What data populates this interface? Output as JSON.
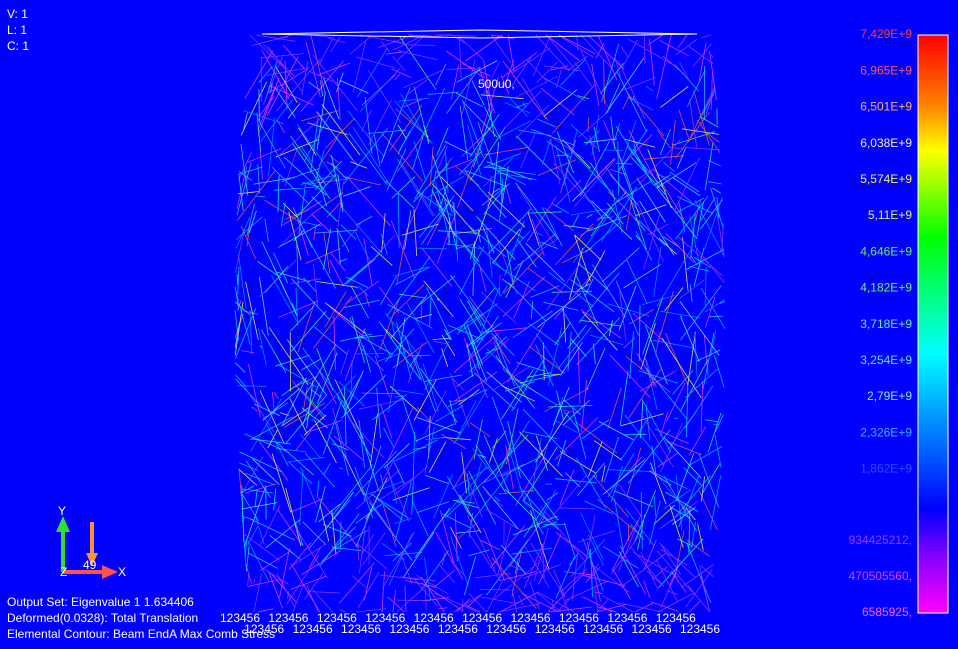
{
  "viewport_info": {
    "view": "V: 1",
    "load": "L: 1",
    "constraint": "C: 1"
  },
  "annotation": "500u0,",
  "legend": {
    "upper": [
      {
        "label": "7,429E+9",
        "color": "#ff3c3c"
      },
      {
        "label": "6,965E+9",
        "color": "#ff5a5a"
      },
      {
        "label": "6,501E+9",
        "color": "#ffb06a"
      },
      {
        "label": "6,038E+9",
        "color": "#f0f0c0"
      },
      {
        "label": "5,574E+9",
        "color": "#f0f060"
      },
      {
        "label": "5,11E+9",
        "color": "#d8f070"
      },
      {
        "label": "4,646E+9",
        "color": "#60f060"
      },
      {
        "label": "4,182E+9",
        "color": "#70f070"
      },
      {
        "label": "3,718E+9",
        "color": "#60f0b0"
      },
      {
        "label": "3,254E+9",
        "color": "#60e0f0"
      },
      {
        "label": "2,79E+9",
        "color": "#80e8ff"
      },
      {
        "label": "2,326E+9",
        "color": "#40b0ff"
      },
      {
        "label": "1,862E+9",
        "color": "#3050ff"
      }
    ],
    "lower": [
      {
        "label": "934425212,",
        "color": "#9a3cff"
      },
      {
        "label": "470505560,",
        "color": "#e040ff"
      },
      {
        "label": "6585925,",
        "color": "#ff60ff"
      }
    ]
  },
  "status": [
    "Output Set: Eigenvalue 1 1.634406",
    "Deformed(0.0328): Total Translation",
    "Elemental Contour: Beam EndA Max Comb Stress"
  ],
  "triad": {
    "x": "X",
    "y": "Y",
    "z": "Z",
    "angle": "49"
  },
  "constraint_labels": [
    "123456",
    "123456",
    "123456",
    "123456",
    "123456",
    "123456",
    "123456",
    "123456",
    "123456",
    "123456",
    "123456",
    "123456",
    "123456",
    "123456",
    "123456",
    "123456",
    "123456",
    "123456",
    "123456",
    "123456"
  ]
}
